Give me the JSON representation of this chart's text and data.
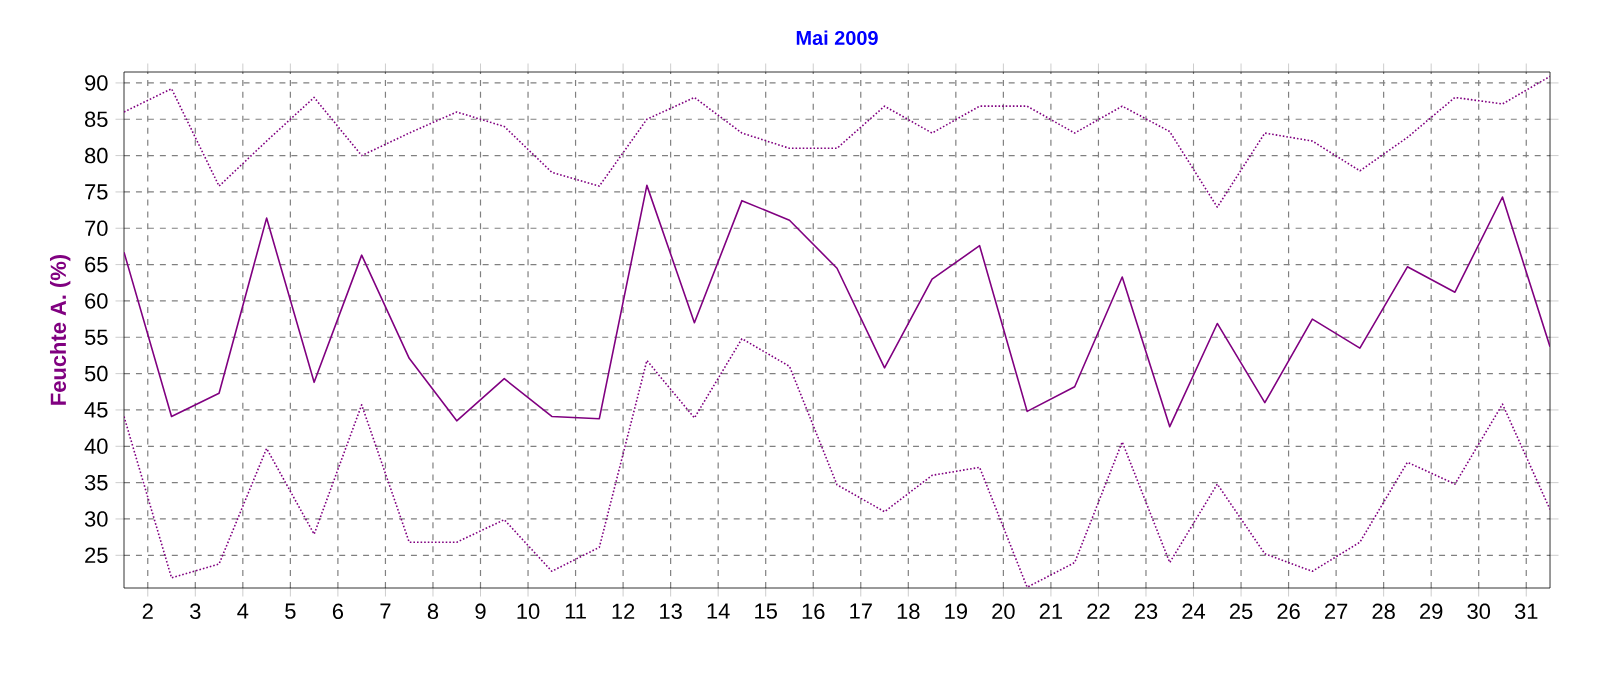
{
  "chart_data": {
    "type": "line",
    "title": "Mai 2009",
    "ylabel": "Feuchte A.  (%)",
    "x": [
      1.5,
      2.5,
      3.5,
      4.5,
      5.5,
      6.5,
      7.5,
      8.5,
      9.5,
      10.5,
      11.5,
      12.5,
      13.5,
      14.5,
      15.5,
      16.5,
      17.5,
      18.5,
      19.5,
      20.5,
      21.5,
      22.5,
      23.5,
      24.5,
      25.5,
      26.5,
      27.5,
      28.5,
      29.5,
      30.5,
      31.5
    ],
    "series": [
      {
        "color": "#800080",
        "line_style": "dotted",
        "values": [
          86,
          89.2,
          75.8,
          82,
          88,
          80,
          83.1,
          86,
          84,
          77.7,
          75.8,
          85,
          88,
          83.1,
          81,
          81,
          86.8,
          83.1,
          86.8,
          86.8,
          83.1,
          86.8,
          83.3,
          72.9,
          83.1,
          82,
          77.9,
          82.5,
          88,
          87.1,
          90.9
        ]
      },
      {
        "color": "#800080",
        "line_style": "solid",
        "values": [
          66.7,
          44.1,
          47.3,
          71.4,
          48.8,
          66.3,
          52.1,
          43.5,
          49.3,
          44.1,
          43.8,
          75.9,
          57,
          73.8,
          71.1,
          64.5,
          50.8,
          63,
          67.6,
          44.8,
          48.2,
          63.3,
          42.7,
          56.9,
          46,
          57.5,
          53.5,
          64.7,
          61.2,
          74.3,
          53.7
        ]
      },
      {
        "color": "#800080",
        "line_style": "dotted",
        "values": [
          44.1,
          21.9,
          23.8,
          39.7,
          27.9,
          45.7,
          26.8,
          26.8,
          29.9,
          22.8,
          26.1,
          51.8,
          43.9,
          54.8,
          51,
          34.7,
          31,
          36,
          37.1,
          20.6,
          24,
          40.6,
          24,
          34.8,
          25.2,
          22.8,
          26.8,
          37.8,
          34.8,
          45.8,
          31.3
        ]
      }
    ],
    "xlim": [
      1.5,
      31.5
    ],
    "xticks": [
      2,
      3,
      4,
      5,
      6,
      7,
      8,
      9,
      10,
      11,
      12,
      13,
      14,
      15,
      16,
      17,
      18,
      19,
      20,
      21,
      22,
      23,
      24,
      25,
      26,
      27,
      28,
      29,
      30,
      31
    ],
    "ylim": [
      20.5,
      91.5
    ],
    "yticks": [
      25,
      30,
      35,
      40,
      45,
      50,
      55,
      60,
      65,
      70,
      75,
      80,
      85,
      90
    ],
    "grid": true,
    "marker": "none"
  }
}
